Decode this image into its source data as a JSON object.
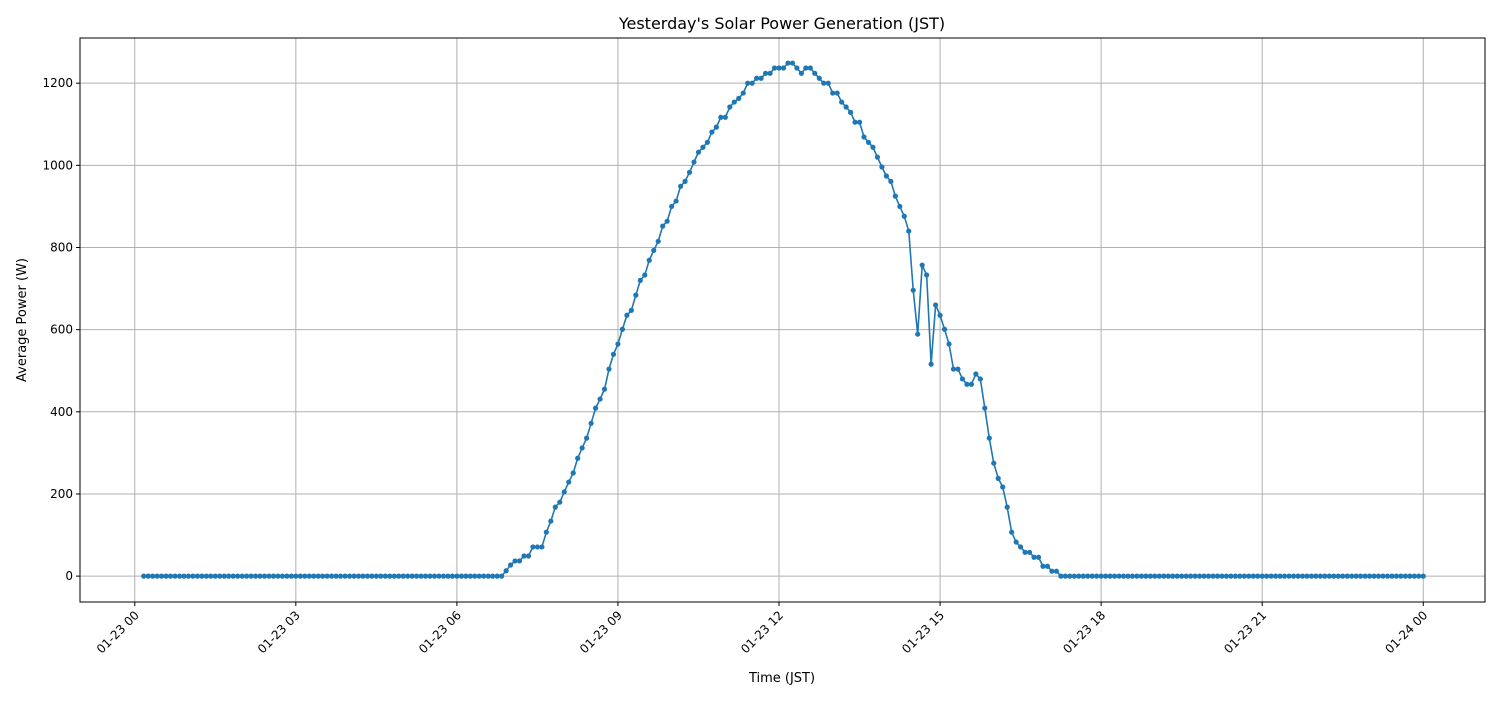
{
  "chart_data": {
    "type": "line",
    "title": "Yesterday's Solar Power Generation (JST)",
    "xlabel": "Time (JST)",
    "ylabel": "Average Power (W)",
    "x_start": "01-23 00:10",
    "x_step_minutes": 5,
    "x_tick_labels": [
      "01-23 00",
      "01-23 03",
      "01-23 06",
      "01-23 09",
      "01-23 12",
      "01-23 15",
      "01-23 18",
      "01-23 21",
      "01-24 00"
    ],
    "y_ticks": [
      0,
      200,
      400,
      600,
      800,
      1000,
      1200
    ],
    "ylim": [
      -63,
      1310
    ],
    "xlim_hours": [
      -1.02,
      25.15
    ],
    "grid": true,
    "marker": "circle",
    "color": "#1f77b4",
    "values": [
      0,
      0,
      0,
      0,
      0,
      0,
      0,
      0,
      0,
      0,
      0,
      0,
      0,
      0,
      0,
      0,
      0,
      0,
      0,
      0,
      0,
      0,
      0,
      0,
      0,
      0,
      0,
      0,
      0,
      0,
      0,
      0,
      0,
      0,
      0,
      0,
      0,
      0,
      0,
      0,
      0,
      0,
      0,
      0,
      0,
      0,
      0,
      0,
      0,
      0,
      0,
      0,
      0,
      0,
      0,
      0,
      0,
      0,
      0,
      0,
      0,
      0,
      0,
      0,
      0,
      0,
      0,
      0,
      0,
      0,
      0,
      0,
      0,
      0,
      0,
      0,
      0,
      0,
      0,
      0,
      0,
      13,
      27,
      37,
      37,
      49,
      49,
      71,
      71,
      71,
      107,
      134,
      168,
      180,
      205,
      229,
      251,
      287,
      312,
      336,
      372,
      409,
      431,
      455,
      504,
      540,
      565,
      601,
      635,
      647,
      684,
      720,
      733,
      769,
      793,
      815,
      852,
      864,
      900,
      913,
      949,
      961,
      983,
      1008,
      1032,
      1044,
      1056,
      1081,
      1093,
      1117,
      1117,
      1142,
      1154,
      1163,
      1176,
      1200,
      1200,
      1212,
      1212,
      1224,
      1224,
      1237,
      1237,
      1237,
      1249,
      1249,
      1237,
      1224,
      1237,
      1237,
      1224,
      1212,
      1200,
      1200,
      1176,
      1176,
      1154,
      1142,
      1129,
      1105,
      1105,
      1069,
      1056,
      1044,
      1020,
      996,
      974,
      961,
      925,
      900,
      876,
      840,
      696,
      589,
      757,
      733,
      516,
      660,
      635,
      601,
      565,
      504,
      504,
      480,
      467,
      467,
      492,
      480,
      409,
      336,
      275,
      238,
      217,
      168,
      107,
      83,
      71,
      58,
      58,
      46,
      46,
      24,
      24,
      12,
      12,
      0,
      0,
      0,
      0,
      0,
      0,
      0,
      0,
      0,
      0,
      0,
      0,
      0,
      0,
      0,
      0,
      0,
      0,
      0,
      0,
      0,
      0,
      0,
      0,
      0,
      0,
      0,
      0,
      0,
      0,
      0,
      0,
      0,
      0,
      0,
      0,
      0,
      0,
      0,
      0,
      0,
      0,
      0,
      0,
      0,
      0,
      0,
      0,
      0,
      0,
      0,
      0,
      0,
      0,
      0,
      0,
      0,
      0,
      0,
      0,
      0,
      0,
      0,
      0,
      0,
      0,
      0,
      0,
      0,
      0,
      0,
      0,
      0,
      0,
      0,
      0,
      0,
      0,
      0,
      0,
      0,
      0
    ]
  }
}
